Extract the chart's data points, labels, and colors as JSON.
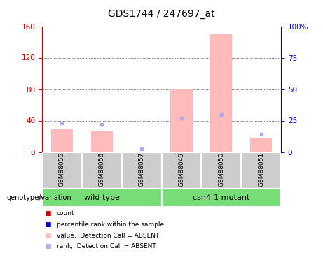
{
  "title": "GDS1744 / 247697_at",
  "samples": [
    "GSM88055",
    "GSM88056",
    "GSM88057",
    "GSM88049",
    "GSM88050",
    "GSM88051"
  ],
  "bar_values": [
    30,
    26,
    0,
    80,
    150,
    18
  ],
  "rank_values": [
    23,
    22,
    2.5,
    27,
    30,
    14
  ],
  "ylim_left": [
    0,
    160
  ],
  "ylim_right": [
    0,
    100
  ],
  "yticks_left": [
    0,
    40,
    80,
    120,
    160
  ],
  "yticks_right": [
    0,
    25,
    50,
    75,
    100
  ],
  "ytick_labels_right": [
    "0",
    "25",
    "50",
    "75",
    "100%"
  ],
  "grid_lines": [
    40,
    80,
    120
  ],
  "bar_color": "#ffbbbb",
  "rank_color": "#aaaaee",
  "bar_width": 0.25,
  "left_tick_color": "#cc0000",
  "right_tick_color": "#0000cc",
  "legend_items": [
    {
      "color": "#cc0000",
      "label": "count"
    },
    {
      "color": "#0000cc",
      "label": "percentile rank within the sample"
    },
    {
      "color": "#ffbbbb",
      "label": "value,  Detection Call = ABSENT"
    },
    {
      "color": "#aaaaee",
      "label": "rank,  Detection Call = ABSENT"
    }
  ],
  "genotype_label": "genotype/variation",
  "group_bg_color": "#cccccc",
  "group_green_color": "#77dd77",
  "wild_type_label": "wild type",
  "mutant_label": "csn4-1 mutant"
}
